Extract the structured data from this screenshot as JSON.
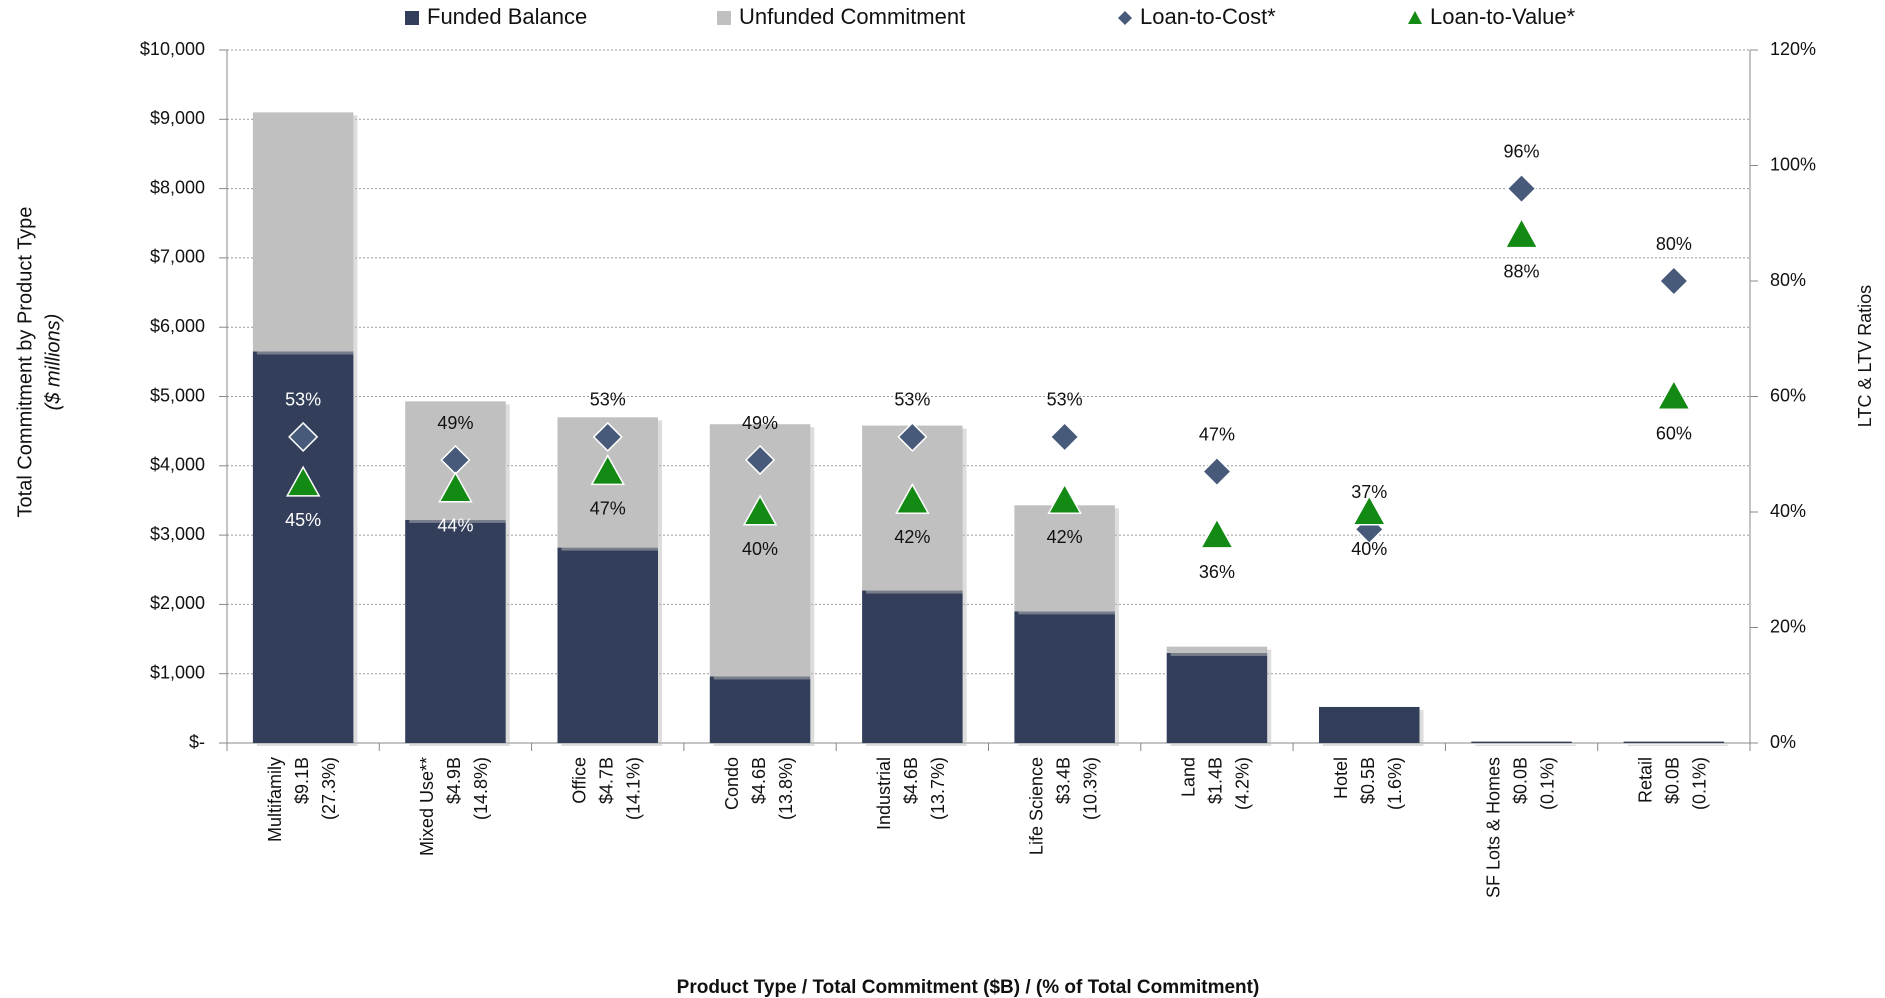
{
  "chart_data": {
    "type": "bar",
    "categories": [
      [
        "Multifamily",
        "$9.1B",
        "(27.3%)"
      ],
      [
        "Mixed Use**",
        "$4.9B",
        "(14.8%)"
      ],
      [
        "Office",
        "$4.7B",
        "(14.1%)"
      ],
      [
        "Condo",
        "$4.6B",
        "(13.8%)"
      ],
      [
        "Industrial",
        "$4.6B",
        "(13.7%)"
      ],
      [
        "Life Science",
        "$3.4B",
        "(10.3%)"
      ],
      [
        "Land",
        "$1.4B",
        "(4.2%)"
      ],
      [
        "Hotel",
        "$0.5B",
        "(1.6%)"
      ],
      [
        "SF Lots & Homes",
        "$0.0B",
        "(0.1%)"
      ],
      [
        "Retail",
        "$0.0B",
        "(0.1%)"
      ]
    ],
    "series": [
      {
        "name": "Funded Balance",
        "color": "#333f5a",
        "values": [
          5650,
          3220,
          2820,
          960,
          2200,
          1900,
          1300,
          520,
          20,
          20
        ]
      },
      {
        "name": "Unfunded Commitment",
        "color": "#c0c0c0",
        "values": [
          3450,
          1710,
          1880,
          3640,
          2380,
          1530,
          90,
          0,
          0,
          0
        ]
      },
      {
        "name": "Loan-to-Cost*",
        "color": "#475a7a",
        "type": "diamond",
        "axis": "y2",
        "values": [
          53,
          49,
          53,
          49,
          53,
          53,
          47,
          37,
          96,
          80
        ],
        "value_labels": [
          "53%",
          "49%",
          "53%",
          "49%",
          "53%",
          "53%",
          "47%",
          "37%",
          "96%",
          "80%"
        ]
      },
      {
        "name": "Loan-to-Value*",
        "color": "#138a13",
        "type": "triangle",
        "axis": "y2",
        "values": [
          45,
          44,
          47,
          40,
          42,
          42,
          36,
          40,
          88,
          60
        ],
        "value_labels": [
          "45%",
          "44%",
          "47%",
          "40%",
          "42%",
          "42%",
          "36%",
          "40%",
          "88%",
          "60%"
        ]
      }
    ],
    "ylim": [
      0,
      10000
    ],
    "yticks": [
      {
        "value": 0,
        "label": "$-"
      },
      {
        "value": 1000,
        "label": "$1,000"
      },
      {
        "value": 2000,
        "label": "$2,000"
      },
      {
        "value": 3000,
        "label": "$3,000"
      },
      {
        "value": 4000,
        "label": "$4,000"
      },
      {
        "value": 5000,
        "label": "$5,000"
      },
      {
        "value": 6000,
        "label": "$6,000"
      },
      {
        "value": 7000,
        "label": "$7,000"
      },
      {
        "value": 8000,
        "label": "$8,000"
      },
      {
        "value": 9000,
        "label": "$9,000"
      },
      {
        "value": 10000,
        "label": "$10,000"
      }
    ],
    "y2lim": [
      0,
      120
    ],
    "y2ticks": [
      {
        "value": 0,
        "label": "0%"
      },
      {
        "value": 20,
        "label": "20%"
      },
      {
        "value": 40,
        "label": "40%"
      },
      {
        "value": 60,
        "label": "60%"
      },
      {
        "value": 80,
        "label": "80%"
      },
      {
        "value": 100,
        "label": "100%"
      },
      {
        "value": 120,
        "label": "120%"
      }
    ],
    "y_label": "Total Commitment by Product Type",
    "y_label_note": "($ millions)",
    "y2_label": "LTC & LTV Ratios",
    "x_label": "Product Type / Total Commitment ($B) / (% of Total Commitment)",
    "grid": true,
    "legend": "top"
  }
}
